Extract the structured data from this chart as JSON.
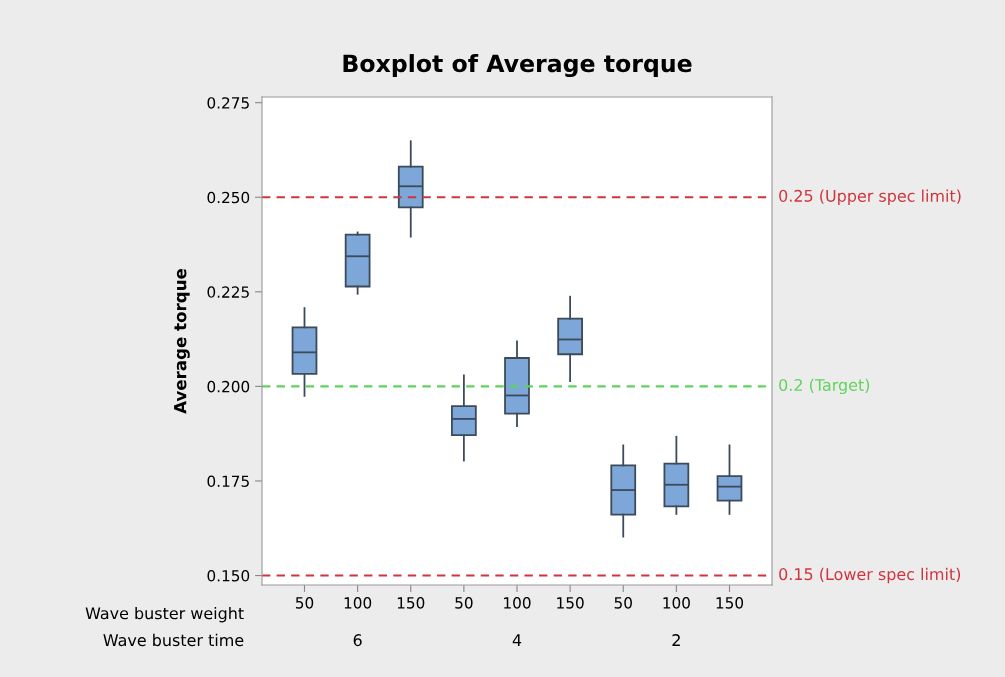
{
  "chart_data": {
    "type": "box",
    "title": "Boxplot of Average torque",
    "ylabel": "Average torque",
    "categories": [
      "50",
      "100",
      "150",
      "50",
      "100",
      "150",
      "50",
      "100",
      "150"
    ],
    "annotations": [
      "Wave buster weight",
      "Wave buster time",
      "6",
      "4",
      "2"
    ],
    "color": "#7da7d9",
    "boxes": [
      {
        "low": 0.1975,
        "q1": 0.2033,
        "median": 0.209,
        "q3": 0.2156,
        "high": 0.2207
      },
      {
        "low": 0.2245,
        "q1": 0.2264,
        "median": 0.2344,
        "q3": 0.2401,
        "high": 0.2407
      },
      {
        "low": 0.2396,
        "q1": 0.2473,
        "median": 0.2529,
        "q3": 0.2581,
        "high": 0.2648
      },
      {
        "low": 0.1804,
        "q1": 0.1871,
        "median": 0.1914,
        "q3": 0.1948,
        "high": 0.2029
      },
      {
        "low": 0.1895,
        "q1": 0.1928,
        "median": 0.1976,
        "q3": 0.2075,
        "high": 0.2119
      },
      {
        "low": 0.2014,
        "q1": 0.2085,
        "median": 0.2124,
        "q3": 0.2179,
        "high": 0.2237
      },
      {
        "low": 0.1603,
        "q1": 0.1661,
        "median": 0.1726,
        "q3": 0.1791,
        "high": 0.1844
      },
      {
        "low": 0.1663,
        "q1": 0.1683,
        "median": 0.174,
        "q3": 0.1796,
        "high": 0.1867
      },
      {
        "low": 0.1663,
        "q1": 0.1698,
        "median": 0.1735,
        "q3": 0.1763,
        "high": 0.1844
      }
    ],
    "ylim": [
      0.1475,
      0.2765
    ],
    "yticks": [
      "0.150",
      "0.175",
      "0.200",
      "0.225",
      "0.250",
      "0.275"
    ],
    "ref_lines": [
      {
        "axis": "y",
        "value": 0.25,
        "label": "0.25 (Upper spec limit)",
        "color": "#d0343c",
        "line_style": "dashed"
      },
      {
        "axis": "y",
        "value": 0.2,
        "label": "0.2 (Target)",
        "color": "#5fd35a",
        "line_style": "dashed"
      },
      {
        "axis": "y",
        "value": 0.15,
        "label": "0.15 (Lower spec limit)",
        "color": "#d0343c",
        "line_style": "dashed"
      }
    ],
    "grid": false,
    "legend": false
  }
}
